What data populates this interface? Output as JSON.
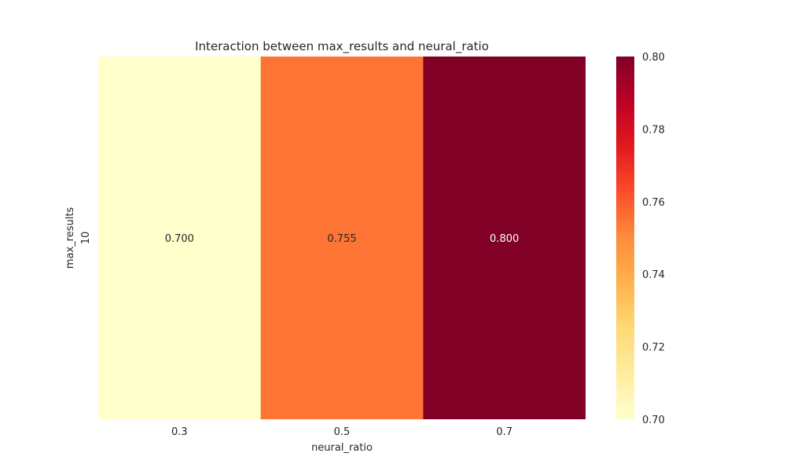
{
  "chart_data": {
    "type": "heatmap",
    "title": "Interaction between max_results and neural_ratio",
    "xlabel": "neural_ratio",
    "ylabel": "max_results",
    "x_categories": [
      "0.3",
      "0.5",
      "0.7"
    ],
    "y_categories": [
      "10"
    ],
    "values": [
      [
        0.7,
        0.755,
        0.8
      ]
    ],
    "value_labels": [
      [
        "0.700",
        "0.755",
        "0.800"
      ]
    ],
    "colormap": "YlOrRd",
    "colorbar": {
      "range": [
        0.7,
        0.8
      ],
      "ticks": [
        "0.70",
        "0.72",
        "0.74",
        "0.76",
        "0.78",
        "0.80"
      ]
    }
  }
}
